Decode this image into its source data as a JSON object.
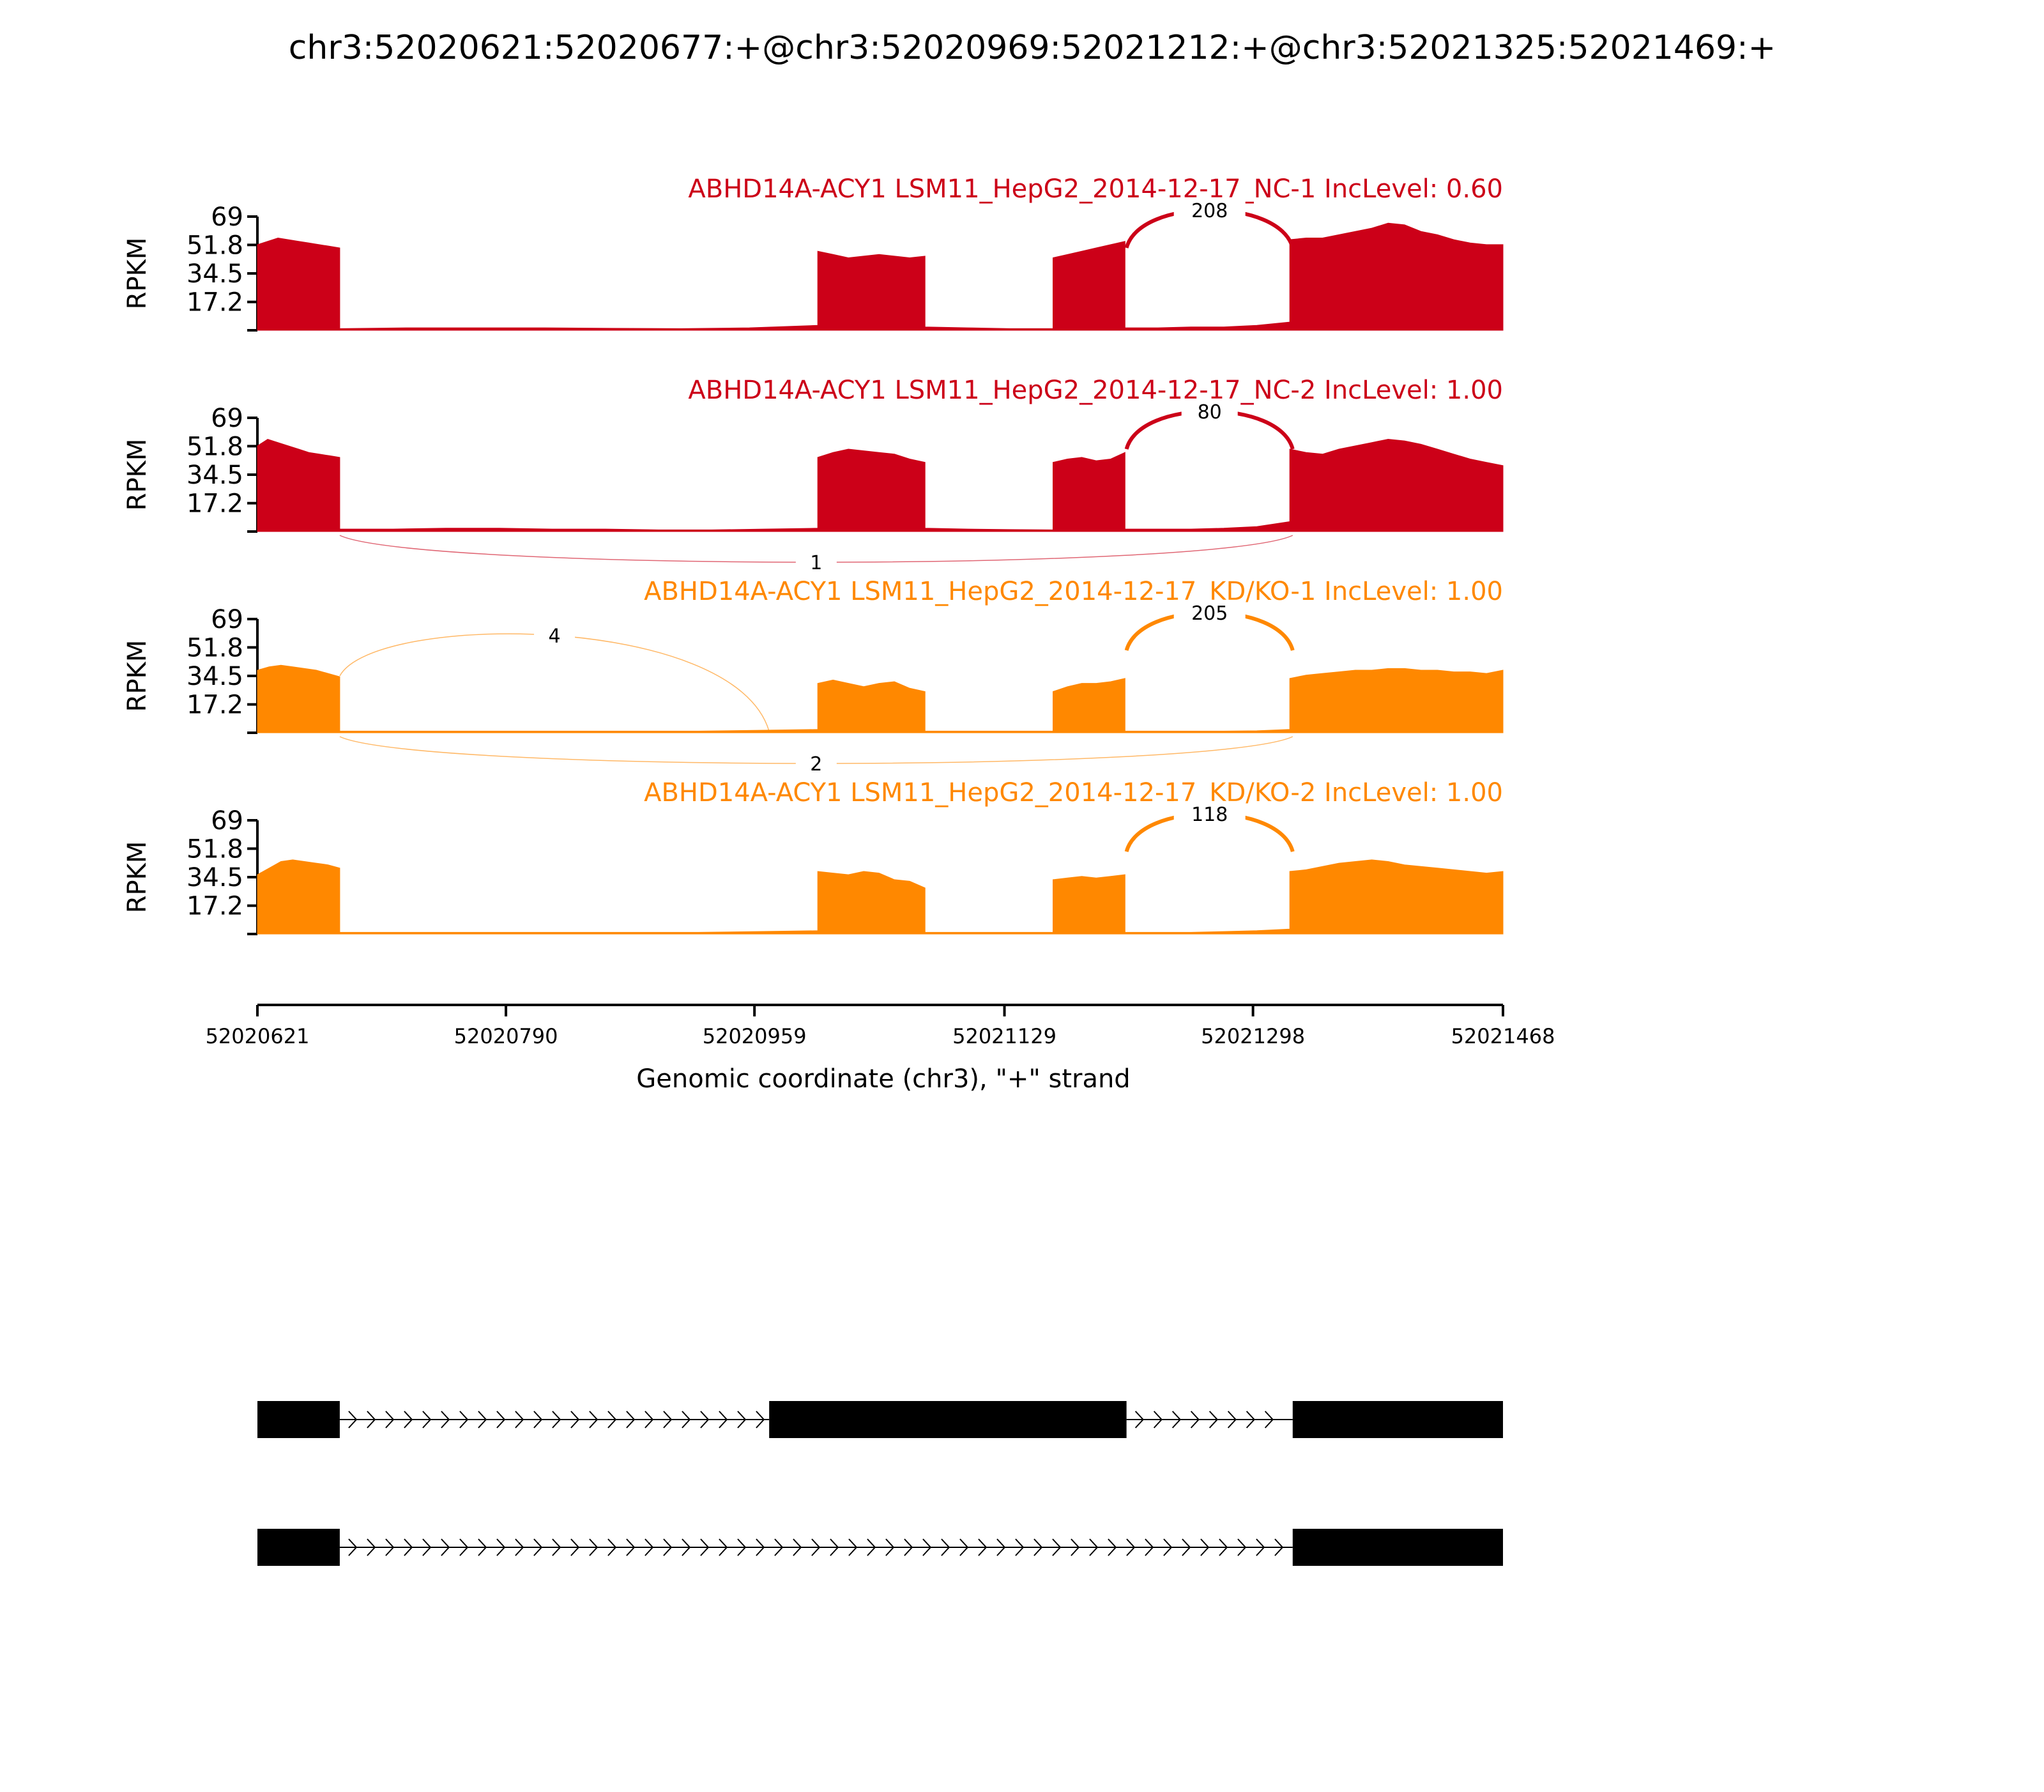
{
  "title": "chr3:52020621:52020677:+@chr3:52020969:52021212:+@chr3:52021325:52021469:+",
  "colors": {
    "nc": "#cc0018",
    "kd": "#ff8800",
    "axis": "#000000",
    "model": "#000000"
  },
  "chart_data": {
    "type": "area",
    "x_range": [
      52020621,
      52021468
    ],
    "xticks": [
      52020621,
      52020790,
      52020959,
      52021129,
      52021298,
      52021468
    ],
    "xtick_labels": [
      "52020621",
      "52020790",
      "52020959",
      "52021129",
      "52021298",
      "52021468"
    ],
    "xlabel": "Genomic coordinate (chr3), \"+\" strand",
    "ylabel": "RPKM",
    "ylim": [
      0,
      69
    ],
    "yticks": [
      17.2,
      34.5,
      51.8,
      69
    ],
    "ytick_labels": [
      "17.2",
      "34.5",
      "51.8",
      "69"
    ],
    "exons": [
      [
        52020621,
        52020676
      ],
      [
        52020969,
        52021212
      ],
      [
        52021325,
        52021468
      ]
    ],
    "tracks": [
      {
        "title": "ABHD14A-ACY1 LSM11_HepG2_2014-12-17_NC-1 IncLevel: 0.60",
        "color": "nc",
        "coverage": [
          {
            "start": 52020621,
            "end": 52020677,
            "values": [
              52,
              54,
              56,
              55,
              54,
              53,
              52,
              51,
              50
            ]
          },
          {
            "start": 52020677,
            "end": 52021002,
            "values": [
              1,
              1.5,
              1.5,
              1.5,
              1.2,
              1,
              1.5,
              3
            ]
          },
          {
            "start": 52021002,
            "end": 52021075,
            "values": [
              48,
              46,
              44,
              45,
              46,
              45,
              44,
              45
            ]
          },
          {
            "start": 52021075,
            "end": 52021162,
            "values": [
              2,
              1.5,
              1,
              1
            ]
          },
          {
            "start": 52021162,
            "end": 52021211,
            "values": [
              44,
              46,
              48,
              50,
              52,
              54
            ]
          },
          {
            "start": 52021211,
            "end": 52021323,
            "values": [
              1.5,
              1.5,
              2,
              2,
              3,
              5
            ]
          },
          {
            "start": 52021323,
            "end": 52021468,
            "values": [
              55,
              56,
              56,
              58,
              60,
              62,
              65,
              64,
              60,
              58,
              55,
              53,
              52,
              52
            ]
          }
        ],
        "junctions": [
          {
            "start": 52021212,
            "end": 52021325,
            "count": "208",
            "side": "above"
          }
        ]
      },
      {
        "title": "ABHD14A-ACY1 LSM11_HepG2_2014-12-17_NC-2 IncLevel: 1.00",
        "color": "nc",
        "coverage": [
          {
            "start": 52020621,
            "end": 52020677,
            "values": [
              52,
              56,
              54,
              52,
              50,
              48,
              47,
              46,
              45
            ]
          },
          {
            "start": 52020677,
            "end": 52021002,
            "values": [
              1.5,
              1.5,
              2,
              2,
              1.5,
              1.5,
              1,
              1,
              1.5,
              2
            ]
          },
          {
            "start": 52021002,
            "end": 52021075,
            "values": [
              45,
              48,
              50,
              49,
              48,
              47,
              44,
              42
            ]
          },
          {
            "start": 52021075,
            "end": 52021162,
            "values": [
              2,
              1.5,
              1.2,
              1
            ]
          },
          {
            "start": 52021162,
            "end": 52021211,
            "values": [
              42,
              44,
              45,
              43,
              44,
              48
            ]
          },
          {
            "start": 52021211,
            "end": 52021323,
            "values": [
              1.5,
              1.5,
              1.5,
              2,
              3,
              6
            ]
          },
          {
            "start": 52021323,
            "end": 52021468,
            "values": [
              50,
              48,
              47,
              50,
              52,
              54,
              56,
              55,
              53,
              50,
              47,
              44,
              42,
              40
            ]
          }
        ],
        "junctions": [
          {
            "start": 52021212,
            "end": 52021325,
            "count": "80",
            "side": "above"
          },
          {
            "start": 52020677,
            "end": 52021325,
            "count": "1",
            "side": "below"
          }
        ]
      },
      {
        "title": "ABHD14A-ACY1 LSM11_HepG2_2014-12-17_KD/KO-1 IncLevel: 1.00",
        "color": "kd",
        "coverage": [
          {
            "start": 52020621,
            "end": 52020677,
            "values": [
              38,
              40,
              41,
              40,
              39,
              38,
              36,
              34
            ]
          },
          {
            "start": 52020677,
            "end": 52021002,
            "values": [
              1,
              1,
              1,
              1,
              1,
              1,
              1,
              1.5,
              2
            ]
          },
          {
            "start": 52021002,
            "end": 52021075,
            "values": [
              30,
              32,
              30,
              28,
              30,
              31,
              27,
              25
            ]
          },
          {
            "start": 52021075,
            "end": 52021162,
            "values": [
              1,
              1,
              1,
              1
            ]
          },
          {
            "start": 52021162,
            "end": 52021211,
            "values": [
              25,
              28,
              30,
              30,
              31,
              33
            ]
          },
          {
            "start": 52021211,
            "end": 52021323,
            "values": [
              1,
              1,
              1,
              1,
              1.2,
              2
            ]
          },
          {
            "start": 52021323,
            "end": 52021468,
            "values": [
              33,
              35,
              36,
              37,
              38,
              38,
              39,
              39,
              38,
              38,
              37,
              37,
              36,
              38
            ]
          }
        ],
        "junctions": [
          {
            "start": 52021212,
            "end": 52021325,
            "count": "205",
            "side": "above"
          },
          {
            "start": 52020677,
            "end": 52020969,
            "count": "4",
            "side": "above"
          },
          {
            "start": 52020677,
            "end": 52021325,
            "count": "2",
            "side": "below"
          }
        ]
      },
      {
        "title": "ABHD14A-ACY1 LSM11_HepG2_2014-12-17_KD/KO-2 IncLevel: 1.00",
        "color": "kd",
        "coverage": [
          {
            "start": 52020621,
            "end": 52020677,
            "values": [
              36,
              40,
              44,
              45,
              44,
              43,
              42,
              40
            ]
          },
          {
            "start": 52020677,
            "end": 52021002,
            "values": [
              1,
              1,
              1,
              1,
              1,
              1,
              1,
              1.5,
              2
            ]
          },
          {
            "start": 52021002,
            "end": 52021075,
            "values": [
              38,
              37,
              36,
              38,
              37,
              33,
              32,
              28
            ]
          },
          {
            "start": 52021075,
            "end": 52021162,
            "values": [
              1,
              1,
              1,
              1
            ]
          },
          {
            "start": 52021162,
            "end": 52021211,
            "values": [
              33,
              34,
              35,
              34,
              35,
              36
            ]
          },
          {
            "start": 52021211,
            "end": 52021323,
            "values": [
              1,
              1,
              1,
              1.5,
              2,
              3
            ]
          },
          {
            "start": 52021323,
            "end": 52021468,
            "values": [
              38,
              39,
              41,
              43,
              44,
              45,
              44,
              42,
              41,
              40,
              39,
              38,
              37,
              38
            ]
          }
        ],
        "junctions": [
          {
            "start": 52021212,
            "end": 52021325,
            "count": "118",
            "side": "above"
          }
        ]
      }
    ],
    "gene_models": [
      {
        "exons": [
          [
            52020621,
            52020677
          ],
          [
            52020969,
            52021212
          ],
          [
            52021325,
            52021468
          ]
        ]
      },
      {
        "exons": [
          [
            52020621,
            52020677
          ],
          [
            52021325,
            52021468
          ]
        ]
      }
    ]
  }
}
